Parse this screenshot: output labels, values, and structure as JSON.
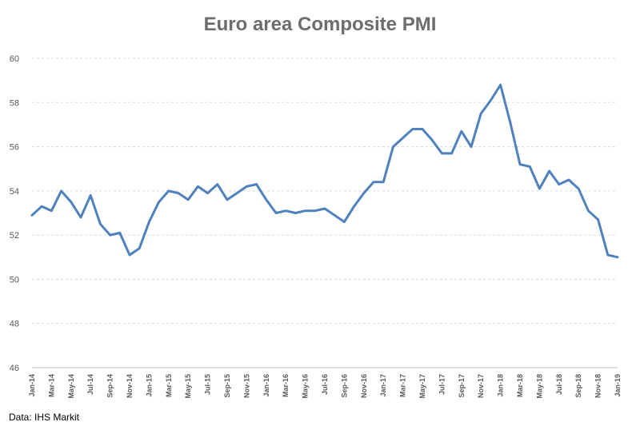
{
  "chart_data": {
    "type": "line",
    "title": "Euro area Composite PMI",
    "source": "Data: IHS Markit",
    "xlabel": "",
    "ylabel": "",
    "ylim": [
      46,
      60
    ],
    "yticks": [
      46,
      48,
      50,
      52,
      54,
      56,
      58,
      60
    ],
    "grid": true,
    "color": "#4f81bd",
    "categories": [
      "Jan-14",
      "Feb-14",
      "Mar-14",
      "Apr-14",
      "May-14",
      "Jun-14",
      "Jul-14",
      "Aug-14",
      "Sep-14",
      "Oct-14",
      "Nov-14",
      "Dec-14",
      "Jan-15",
      "Feb-15",
      "Mar-15",
      "Apr-15",
      "May-15",
      "Jun-15",
      "Jul-15",
      "Aug-15",
      "Sep-15",
      "Oct-15",
      "Nov-15",
      "Dec-15",
      "Jan-16",
      "Feb-16",
      "Mar-16",
      "Apr-16",
      "May-16",
      "Jun-16",
      "Jul-16",
      "Aug-16",
      "Sep-16",
      "Oct-16",
      "Nov-16",
      "Dec-16",
      "Jan-17",
      "Feb-17",
      "Mar-17",
      "Apr-17",
      "May-17",
      "Jun-17",
      "Jul-17",
      "Aug-17",
      "Sep-17",
      "Oct-17",
      "Nov-17",
      "Dec-17",
      "Jan-18",
      "Feb-18",
      "Mar-18",
      "Apr-18",
      "May-18",
      "Jun-18",
      "Jul-18",
      "Aug-18",
      "Sep-18",
      "Oct-18",
      "Nov-18",
      "Dec-18",
      "Jan-19"
    ],
    "tick_labels": [
      "Jan-14",
      "Mar-14",
      "May-14",
      "Jul-14",
      "Sep-14",
      "Nov-14",
      "Jan-15",
      "Mar-15",
      "May-15",
      "Jul-15",
      "Sep-15",
      "Nov-15",
      "Jan-16",
      "Mar-16",
      "May-16",
      "Jul-16",
      "Sep-16",
      "Nov-16",
      "Jan-17",
      "Mar-17",
      "May-17",
      "Jul-17",
      "Sep-17",
      "Nov-17",
      "Jan-18",
      "Mar-18",
      "May-18",
      "Jul-18",
      "Sep-18",
      "Nov-18",
      "Jan-19"
    ],
    "series": [
      {
        "name": "Euro area Composite PMI",
        "values": [
          52.9,
          53.3,
          53.1,
          54.0,
          53.5,
          52.8,
          53.8,
          52.5,
          52.0,
          52.1,
          51.1,
          51.4,
          52.6,
          53.5,
          54.0,
          53.9,
          53.6,
          54.2,
          53.9,
          54.3,
          53.6,
          53.9,
          54.2,
          54.3,
          53.6,
          53.0,
          53.1,
          53.0,
          53.1,
          53.1,
          53.2,
          52.9,
          52.6,
          53.3,
          53.9,
          54.4,
          54.4,
          56.0,
          56.4,
          56.8,
          56.8,
          56.3,
          55.7,
          55.7,
          56.7,
          56.0,
          57.5,
          58.1,
          58.8,
          57.1,
          55.2,
          55.1,
          54.1,
          54.9,
          54.3,
          54.5,
          54.1,
          53.1,
          52.7,
          51.1,
          51.0
        ]
      }
    ]
  }
}
